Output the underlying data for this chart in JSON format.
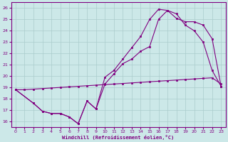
{
  "xlabel": "Windchill (Refroidissement éolien,°C)",
  "bg_color": "#cce8e8",
  "line_color": "#800080",
  "grid_color": "#aacccc",
  "xlim": [
    -0.5,
    23.5
  ],
  "ylim": [
    15.5,
    26.5
  ],
  "xticks": [
    0,
    1,
    2,
    3,
    4,
    5,
    6,
    7,
    8,
    9,
    10,
    11,
    12,
    13,
    14,
    15,
    16,
    17,
    18,
    19,
    20,
    21,
    22,
    23
  ],
  "yticks": [
    16,
    17,
    18,
    19,
    20,
    21,
    22,
    23,
    24,
    25,
    26
  ],
  "line1_x": [
    0,
    1,
    2,
    3,
    4,
    5,
    6,
    7,
    8,
    9,
    10,
    11,
    12,
    13,
    14,
    15,
    16,
    17,
    18,
    19,
    20,
    21,
    22,
    23
  ],
  "line1_y": [
    18.8,
    18.8,
    18.85,
    18.9,
    18.95,
    19.0,
    19.05,
    19.1,
    19.15,
    19.2,
    19.25,
    19.3,
    19.35,
    19.4,
    19.45,
    19.5,
    19.55,
    19.6,
    19.65,
    19.7,
    19.75,
    19.8,
    19.85,
    19.3
  ],
  "line2_x": [
    0,
    2,
    3,
    4,
    5,
    6,
    7,
    8,
    9,
    10,
    11,
    12,
    13,
    14,
    15,
    16,
    17,
    18,
    19,
    20,
    21,
    22,
    23
  ],
  "line2_y": [
    18.8,
    17.6,
    16.9,
    16.7,
    16.7,
    16.4,
    15.8,
    17.8,
    17.1,
    19.3,
    20.2,
    21.1,
    21.5,
    22.2,
    22.6,
    25.0,
    25.8,
    25.5,
    24.5,
    24.0,
    23.0,
    20.5,
    19.1
  ],
  "line3_x": [
    0,
    2,
    3,
    4,
    5,
    6,
    7,
    8,
    9,
    10,
    11,
    12,
    13,
    14,
    15,
    16,
    17,
    18,
    19,
    20,
    21,
    22,
    23
  ],
  "line3_y": [
    18.8,
    17.6,
    16.9,
    16.7,
    16.7,
    16.4,
    15.8,
    17.8,
    17.1,
    19.9,
    20.5,
    21.5,
    22.5,
    23.5,
    25.0,
    25.9,
    25.8,
    25.1,
    24.8,
    24.8,
    24.5,
    23.3,
    19.1
  ]
}
